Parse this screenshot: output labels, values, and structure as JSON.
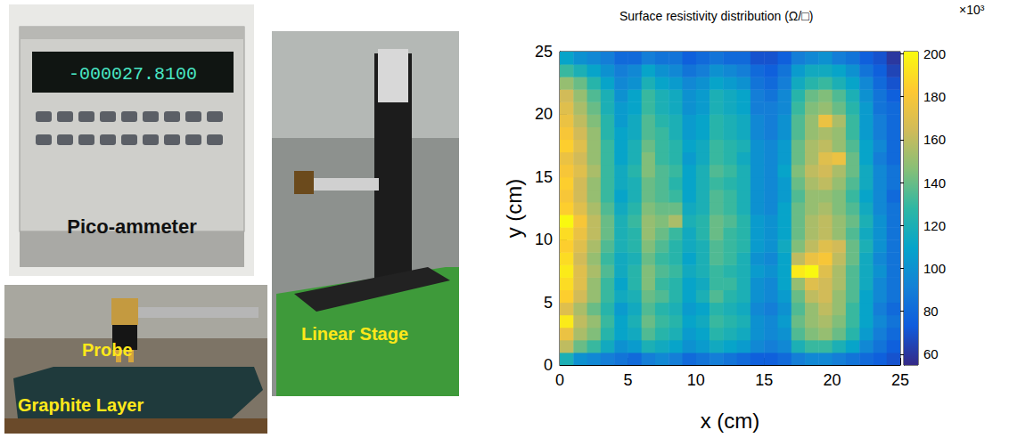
{
  "photos": {
    "ammeter": {
      "label": "Pico-ammeter",
      "display": "-000027.8100"
    },
    "graphite": {
      "probe_label": "Probe",
      "layer_label": "Graphite Layer"
    },
    "stage": {
      "label": "Linear Stage"
    }
  },
  "chart_data": {
    "type": "heatmap",
    "title": "Surface resistivity distribution (Ω/□)",
    "xlabel": "x (cm)",
    "ylabel": "y (cm)",
    "xlim": [
      0,
      25
    ],
    "ylim": [
      0,
      25
    ],
    "xticks": [
      0,
      5,
      10,
      15,
      20,
      25
    ],
    "yticks": [
      0,
      5,
      10,
      15,
      20,
      25
    ],
    "grid": false,
    "colorbar": {
      "range": [
        55,
        201
      ],
      "ticks": [
        60,
        80,
        100,
        120,
        140,
        160,
        180,
        200
      ],
      "multiplier_label": "×10³"
    },
    "cells": [
      [
        120,
        100,
        95,
        90,
        85,
        80,
        90,
        95,
        90,
        80,
        85,
        90,
        85,
        80,
        75,
        75,
        80,
        90,
        95,
        95,
        90,
        85,
        80,
        75,
        70
      ],
      [
        160,
        140,
        130,
        115,
        100,
        105,
        120,
        115,
        110,
        100,
        105,
        115,
        110,
        105,
        95,
        90,
        95,
        120,
        130,
        130,
        120,
        110,
        95,
        85,
        75
      ],
      [
        175,
        155,
        145,
        125,
        110,
        115,
        135,
        125,
        120,
        105,
        110,
        125,
        120,
        115,
        100,
        95,
        100,
        135,
        145,
        150,
        140,
        125,
        105,
        90,
        80
      ],
      [
        195,
        160,
        150,
        130,
        110,
        120,
        140,
        130,
        125,
        110,
        115,
        130,
        125,
        120,
        100,
        95,
        105,
        140,
        150,
        155,
        145,
        130,
        110,
        95,
        85
      ],
      [
        170,
        155,
        140,
        125,
        105,
        115,
        135,
        125,
        120,
        105,
        110,
        125,
        120,
        115,
        95,
        90,
        100,
        135,
        150,
        160,
        150,
        130,
        110,
        90,
        80
      ],
      [
        185,
        165,
        150,
        130,
        115,
        120,
        140,
        135,
        125,
        110,
        120,
        135,
        125,
        120,
        100,
        95,
        105,
        140,
        160,
        165,
        150,
        135,
        110,
        95,
        85
      ],
      [
        190,
        170,
        150,
        130,
        110,
        125,
        145,
        130,
        125,
        110,
        115,
        130,
        130,
        120,
        100,
        95,
        110,
        150,
        170,
        165,
        155,
        135,
        115,
        95,
        85
      ],
      [
        195,
        170,
        155,
        135,
        115,
        125,
        145,
        135,
        130,
        115,
        120,
        130,
        125,
        120,
        105,
        100,
        110,
        195,
        200,
        170,
        155,
        135,
        115,
        100,
        85
      ],
      [
        190,
        165,
        150,
        130,
        115,
        120,
        140,
        130,
        125,
        110,
        120,
        135,
        130,
        120,
        100,
        95,
        110,
        160,
        175,
        180,
        160,
        140,
        115,
        95,
        85
      ],
      [
        185,
        170,
        155,
        135,
        120,
        125,
        145,
        135,
        125,
        115,
        120,
        135,
        130,
        125,
        105,
        100,
        115,
        145,
        160,
        170,
        165,
        140,
        120,
        100,
        85
      ],
      [
        190,
        175,
        160,
        140,
        120,
        125,
        150,
        140,
        130,
        115,
        125,
        140,
        130,
        125,
        105,
        100,
        110,
        140,
        155,
        160,
        150,
        135,
        115,
        100,
        85
      ],
      [
        200,
        180,
        160,
        140,
        120,
        130,
        150,
        145,
        155,
        120,
        125,
        140,
        135,
        125,
        105,
        100,
        110,
        140,
        155,
        160,
        150,
        140,
        120,
        100,
        85
      ],
      [
        185,
        170,
        155,
        135,
        115,
        125,
        145,
        140,
        140,
        115,
        120,
        135,
        130,
        120,
        100,
        95,
        110,
        140,
        150,
        155,
        145,
        135,
        115,
        95,
        85
      ],
      [
        180,
        165,
        150,
        130,
        110,
        120,
        140,
        135,
        130,
        110,
        120,
        135,
        130,
        120,
        100,
        95,
        105,
        135,
        150,
        150,
        145,
        130,
        110,
        95,
        80
      ],
      [
        185,
        165,
        150,
        130,
        115,
        120,
        140,
        135,
        125,
        110,
        120,
        130,
        125,
        120,
        100,
        95,
        105,
        140,
        155,
        160,
        150,
        135,
        115,
        95,
        85
      ],
      [
        180,
        170,
        155,
        130,
        115,
        125,
        145,
        135,
        130,
        110,
        120,
        135,
        130,
        120,
        100,
        95,
        110,
        145,
        160,
        165,
        155,
        140,
        115,
        95,
        85
      ],
      [
        175,
        165,
        150,
        130,
        110,
        120,
        145,
        130,
        125,
        105,
        115,
        130,
        125,
        115,
        100,
        95,
        105,
        140,
        155,
        170,
        175,
        140,
        110,
        90,
        80
      ],
      [
        185,
        170,
        150,
        130,
        110,
        120,
        140,
        130,
        125,
        110,
        115,
        130,
        125,
        120,
        100,
        95,
        105,
        140,
        155,
        160,
        150,
        135,
        110,
        95,
        80
      ],
      [
        180,
        165,
        150,
        125,
        110,
        115,
        135,
        130,
        120,
        105,
        110,
        125,
        120,
        115,
        95,
        90,
        100,
        135,
        150,
        155,
        150,
        130,
        105,
        90,
        80
      ],
      [
        175,
        160,
        145,
        125,
        105,
        115,
        135,
        125,
        120,
        105,
        110,
        125,
        120,
        115,
        95,
        90,
        100,
        135,
        150,
        175,
        155,
        130,
        105,
        90,
        80
      ],
      [
        170,
        155,
        140,
        120,
        105,
        110,
        130,
        120,
        115,
        100,
        105,
        120,
        115,
        110,
        90,
        90,
        95,
        130,
        145,
        150,
        140,
        125,
        105,
        85,
        80
      ],
      [
        165,
        150,
        135,
        120,
        100,
        110,
        130,
        120,
        115,
        100,
        105,
        120,
        115,
        110,
        90,
        85,
        95,
        125,
        140,
        145,
        135,
        120,
        100,
        85,
        75
      ],
      [
        150,
        140,
        125,
        110,
        95,
        100,
        120,
        110,
        105,
        95,
        100,
        110,
        105,
        100,
        85,
        80,
        90,
        115,
        125,
        130,
        120,
        110,
        95,
        80,
        70
      ],
      [
        130,
        120,
        110,
        100,
        90,
        95,
        110,
        100,
        95,
        85,
        90,
        100,
        95,
        90,
        80,
        75,
        85,
        105,
        115,
        115,
        110,
        100,
        85,
        75,
        65
      ],
      [
        110,
        100,
        95,
        90,
        80,
        80,
        90,
        85,
        85,
        75,
        80,
        85,
        80,
        80,
        70,
        70,
        75,
        90,
        95,
        100,
        90,
        85,
        75,
        70,
        60
      ]
    ]
  }
}
